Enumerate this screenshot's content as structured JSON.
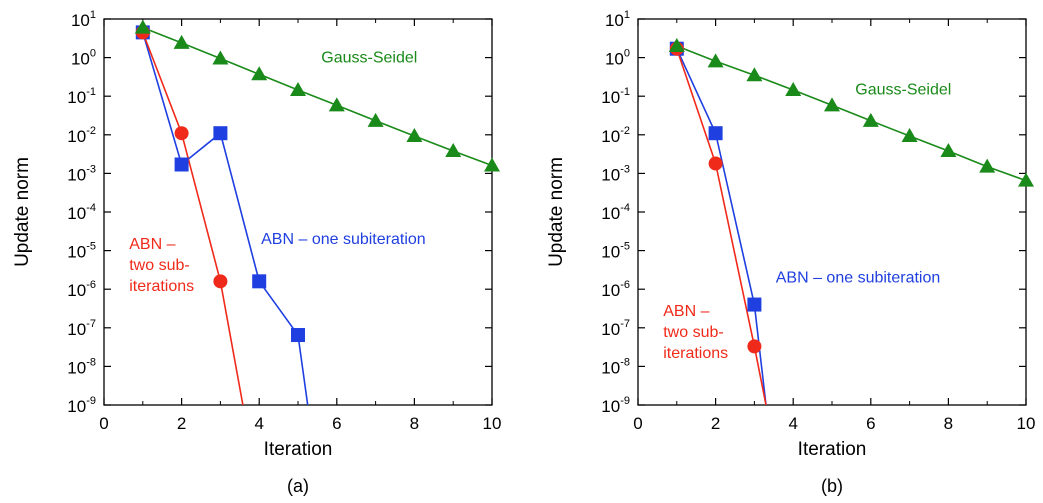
{
  "colors": {
    "gauss": "#1a8a1a",
    "abn_one": "#1f3fe0",
    "abn_two": "#f02a1a"
  },
  "chart_data": [
    {
      "type": "line",
      "panel_label": "(a)",
      "xlabel": "Iteration",
      "ylabel": "Update norm",
      "xlim": [
        0,
        10
      ],
      "ylim_exp": [
        -9,
        1
      ],
      "y_scale": "log",
      "xticks": [
        "0",
        "2",
        "4",
        "6",
        "8",
        "10"
      ],
      "yticks": [
        {
          "base": "10",
          "exp": "1"
        },
        {
          "base": "10",
          "exp": "0"
        },
        {
          "base": "10",
          "exp": "-1"
        },
        {
          "base": "10",
          "exp": "-2"
        },
        {
          "base": "10",
          "exp": "-3"
        },
        {
          "base": "10",
          "exp": "-4"
        },
        {
          "base": "10",
          "exp": "-5"
        },
        {
          "base": "10",
          "exp": "-6"
        },
        {
          "base": "10",
          "exp": "-7"
        },
        {
          "base": "10",
          "exp": "-8"
        },
        {
          "base": "10",
          "exp": "-9"
        }
      ],
      "series": [
        {
          "name": "Gauss-Seidel",
          "color": "#1a8a1a",
          "marker": "triangle",
          "x": [
            1,
            2,
            3,
            4,
            5,
            6,
            7,
            8,
            9,
            10
          ],
          "y": [
            6.0,
            2.4,
            0.95,
            0.37,
            0.145,
            0.058,
            0.023,
            0.0093,
            0.0038,
            0.0016
          ]
        },
        {
          "name": "ABN – one subiteration",
          "color": "#1f3fe0",
          "marker": "square",
          "x": [
            1,
            2,
            3,
            4,
            5,
            5.25
          ],
          "y": [
            4.5,
            0.0017,
            0.011,
            1.6e-06,
            6.5e-08,
            1e-09
          ],
          "marked": [
            true,
            true,
            true,
            true,
            true,
            false
          ]
        },
        {
          "name": "ABN – two sub-iterations",
          "color": "#f02a1a",
          "marker": "circle",
          "x": [
            1,
            2,
            3,
            3.58
          ],
          "y": [
            4.5,
            0.011,
            1.6e-06,
            1e-09
          ],
          "marked": [
            true,
            true,
            true,
            false
          ]
        }
      ],
      "annotations": [
        {
          "series": 0,
          "lines": [
            "Gauss-Seidel"
          ],
          "anchor": "start",
          "x": 5.6,
          "y": 0.75
        },
        {
          "series": 1,
          "lines": [
            "ABN – one subiteration"
          ],
          "anchor": "start",
          "x": 4.05,
          "y": 1.5e-05
        },
        {
          "series": 2,
          "lines": [
            "ABN –",
            "two sub-",
            "iterations"
          ],
          "anchor": "start",
          "x": 0.65,
          "y": 1.1e-05
        }
      ]
    },
    {
      "type": "line",
      "panel_label": "(b)",
      "xlabel": "Iteration",
      "ylabel": "Update norm",
      "xlim": [
        0,
        10
      ],
      "ylim_exp": [
        -9,
        1
      ],
      "y_scale": "log",
      "xticks": [
        "0",
        "2",
        "4",
        "6",
        "8",
        "10"
      ],
      "yticks": [
        {
          "base": "10",
          "exp": "1"
        },
        {
          "base": "10",
          "exp": "0"
        },
        {
          "base": "10",
          "exp": "-1"
        },
        {
          "base": "10",
          "exp": "-2"
        },
        {
          "base": "10",
          "exp": "-3"
        },
        {
          "base": "10",
          "exp": "-4"
        },
        {
          "base": "10",
          "exp": "-5"
        },
        {
          "base": "10",
          "exp": "-6"
        },
        {
          "base": "10",
          "exp": "-7"
        },
        {
          "base": "10",
          "exp": "-8"
        },
        {
          "base": "10",
          "exp": "-9"
        }
      ],
      "series": [
        {
          "name": "Gauss-Seidel",
          "color": "#1a8a1a",
          "marker": "triangle",
          "x": [
            1,
            2,
            3,
            4,
            5,
            6,
            7,
            8,
            9,
            10
          ],
          "y": [
            2.0,
            0.8,
            0.35,
            0.145,
            0.058,
            0.023,
            0.0093,
            0.0038,
            0.0015,
            0.00065
          ]
        },
        {
          "name": "ABN – one subiteration",
          "color": "#1f3fe0",
          "marker": "square",
          "x": [
            1,
            2,
            3,
            3.3
          ],
          "y": [
            1.7,
            0.011,
            4e-07,
            1e-09
          ],
          "marked": [
            true,
            true,
            true,
            false
          ]
        },
        {
          "name": "ABN – two sub-iterations",
          "color": "#f02a1a",
          "marker": "circle",
          "x": [
            1,
            2,
            3,
            3.3
          ],
          "y": [
            1.7,
            0.0018,
            3.3e-08,
            1e-09
          ],
          "marked": [
            true,
            true,
            true,
            false
          ]
        }
      ],
      "annotations": [
        {
          "series": 0,
          "lines": [
            "Gauss-Seidel"
          ],
          "anchor": "start",
          "x": 5.6,
          "y": 0.11
        },
        {
          "series": 1,
          "lines": [
            "ABN – one subiteration"
          ],
          "anchor": "start",
          "x": 3.55,
          "y": 1.5e-06
        },
        {
          "series": 2,
          "lines": [
            "ABN –",
            "two sub-",
            "iterations"
          ],
          "anchor": "start",
          "x": 0.65,
          "y": 2e-07
        }
      ]
    }
  ]
}
